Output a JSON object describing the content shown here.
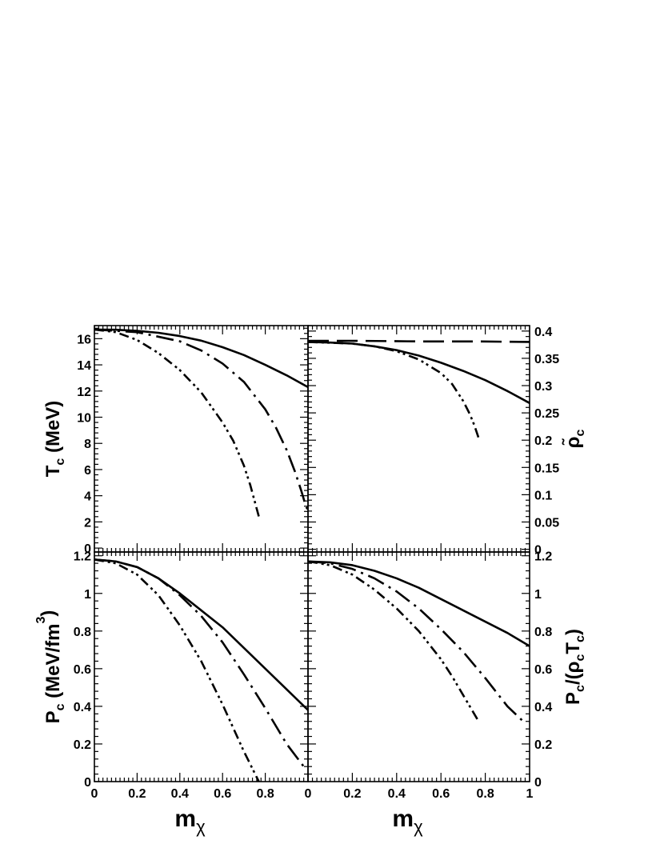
{
  "chart_data": [
    {
      "type": "line",
      "panel": "top-left",
      "xlabel": "",
      "ylabel": [
        "T",
        "c",
        " (MeV)"
      ],
      "xlim": [
        0,
        1
      ],
      "ylim": [
        -0.3,
        17
      ],
      "yticks": [
        0,
        2,
        4,
        6,
        8,
        10,
        12,
        14,
        16
      ],
      "series": [
        {
          "style": "solid",
          "x": [
            0,
            0.1,
            0.2,
            0.3,
            0.4,
            0.5,
            0.6,
            0.7,
            0.8,
            0.9,
            1.0
          ],
          "y": [
            16.7,
            16.68,
            16.6,
            16.45,
            16.2,
            15.85,
            15.35,
            14.75,
            14.0,
            13.2,
            12.3
          ]
        },
        {
          "style": "dash-dot",
          "x": [
            0,
            0.2,
            0.4,
            0.5,
            0.6,
            0.7,
            0.8,
            0.85,
            0.9,
            0.94,
            0.97,
            0.99,
            1.0
          ],
          "y": [
            16.7,
            16.5,
            15.8,
            15.1,
            14.1,
            12.7,
            10.6,
            9.2,
            7.5,
            5.8,
            4.3,
            3.2,
            2.9
          ]
        },
        {
          "style": "dash-dot-dot",
          "x": [
            0,
            0.1,
            0.2,
            0.3,
            0.4,
            0.5,
            0.6,
            0.65,
            0.7,
            0.73,
            0.75,
            0.77
          ],
          "y": [
            16.7,
            16.5,
            15.9,
            14.9,
            13.6,
            11.9,
            9.6,
            8.2,
            6.3,
            4.8,
            3.6,
            2.4
          ]
        }
      ]
    },
    {
      "type": "line",
      "panel": "top-right",
      "xlabel": "",
      "ylabel": [
        "ρ̃",
        "c",
        ""
      ],
      "xlim": [
        0,
        1
      ],
      "ylim": [
        -0.005,
        0.41
      ],
      "yticks": [
        0,
        0.05,
        0.1,
        0.15,
        0.2,
        0.25,
        0.3,
        0.35,
        0.4
      ],
      "series": [
        {
          "style": "solid",
          "x": [
            0,
            0.1,
            0.2,
            0.3,
            0.4,
            0.5,
            0.6,
            0.7,
            0.8,
            0.9,
            1.0
          ],
          "y": [
            0.38,
            0.379,
            0.377,
            0.372,
            0.365,
            0.355,
            0.342,
            0.327,
            0.31,
            0.29,
            0.268
          ]
        },
        {
          "style": "long-dash",
          "x": [
            0,
            0.25,
            0.5,
            0.75,
            1.0
          ],
          "y": [
            0.382,
            0.382,
            0.381,
            0.381,
            0.38
          ]
        },
        {
          "style": "dash-dot-dot",
          "x": [
            0,
            0.2,
            0.3,
            0.4,
            0.5,
            0.6,
            0.65,
            0.7,
            0.73,
            0.75,
            0.77
          ],
          "y": [
            0.38,
            0.377,
            0.372,
            0.363,
            0.348,
            0.323,
            0.303,
            0.272,
            0.248,
            0.228,
            0.204
          ]
        }
      ]
    },
    {
      "type": "line",
      "panel": "bottom-left",
      "xlabel": [
        "m",
        "χ"
      ],
      "ylabel": [
        "P",
        "c",
        " (MeV/fm",
        "3",
        ")"
      ],
      "xlim": [
        0,
        1
      ],
      "ylim": [
        0,
        1.22
      ],
      "xticks": [
        0,
        0.2,
        0.4,
        0.6,
        0.8
      ],
      "yticks": [
        0,
        0.2,
        0.4,
        0.6,
        0.8,
        1,
        1.2
      ],
      "series": [
        {
          "style": "solid",
          "x": [
            0,
            0.1,
            0.2,
            0.3,
            0.4,
            0.5,
            0.6,
            0.7,
            0.8,
            0.9,
            1.0
          ],
          "y": [
            1.18,
            1.17,
            1.14,
            1.08,
            1.0,
            0.91,
            0.82,
            0.71,
            0.6,
            0.49,
            0.38
          ]
        },
        {
          "style": "dash-dot",
          "x": [
            0,
            0.1,
            0.2,
            0.3,
            0.4,
            0.5,
            0.6,
            0.7,
            0.8,
            0.9,
            0.98
          ],
          "y": [
            1.18,
            1.17,
            1.14,
            1.08,
            0.99,
            0.88,
            0.74,
            0.57,
            0.39,
            0.2,
            0.08
          ]
        },
        {
          "style": "dash-dot-dot",
          "x": [
            0,
            0.1,
            0.2,
            0.3,
            0.4,
            0.5,
            0.6,
            0.7,
            0.77
          ],
          "y": [
            1.18,
            1.16,
            1.1,
            0.99,
            0.83,
            0.64,
            0.41,
            0.16,
            0.0
          ]
        }
      ]
    },
    {
      "type": "line",
      "panel": "bottom-right",
      "xlabel": [
        "m",
        "χ"
      ],
      "ylabel": [
        "P",
        "c",
        "/(ρ",
        "c",
        "T",
        "c",
        ")"
      ],
      "xlim": [
        0,
        1
      ],
      "ylim": [
        0,
        1.22
      ],
      "xticks": [
        0,
        0.2,
        0.4,
        0.6,
        0.8,
        1
      ],
      "yticks": [
        0,
        0.2,
        0.4,
        0.6,
        0.8,
        1,
        1.2
      ],
      "series": [
        {
          "style": "solid",
          "x": [
            0,
            0.1,
            0.2,
            0.3,
            0.4,
            0.5,
            0.6,
            0.7,
            0.8,
            0.9,
            1.0
          ],
          "y": [
            1.17,
            1.165,
            1.15,
            1.12,
            1.08,
            1.03,
            0.97,
            0.91,
            0.85,
            0.79,
            0.72
          ]
        },
        {
          "style": "dash-dot",
          "x": [
            0,
            0.1,
            0.2,
            0.3,
            0.4,
            0.5,
            0.6,
            0.7,
            0.8,
            0.9,
            0.98
          ],
          "y": [
            1.17,
            1.16,
            1.13,
            1.08,
            1.01,
            0.92,
            0.81,
            0.69,
            0.55,
            0.4,
            0.31
          ]
        },
        {
          "style": "dash-dot-dot",
          "x": [
            0,
            0.1,
            0.2,
            0.3,
            0.4,
            0.5,
            0.6,
            0.65,
            0.7,
            0.74,
            0.77
          ],
          "y": [
            1.17,
            1.15,
            1.1,
            1.02,
            0.92,
            0.8,
            0.65,
            0.56,
            0.46,
            0.38,
            0.32
          ]
        }
      ]
    }
  ]
}
